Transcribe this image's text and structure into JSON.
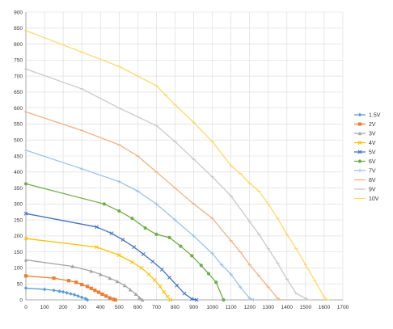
{
  "chart_data": {
    "type": "line",
    "title": "",
    "xlabel": "",
    "ylabel": "",
    "xlim": [
      0,
      1700
    ],
    "ylim": [
      0,
      900
    ],
    "x_ticks": [
      0,
      100,
      200,
      300,
      400,
      500,
      600,
      700,
      800,
      900,
      1000,
      1100,
      1200,
      1300,
      1400,
      1500,
      1600,
      1700
    ],
    "y_ticks": [
      0,
      50,
      100,
      150,
      200,
      250,
      300,
      350,
      400,
      450,
      500,
      550,
      600,
      650,
      700,
      750,
      800,
      850,
      900
    ],
    "grid": true,
    "legend_position": "right",
    "series": [
      {
        "name": "1.5V",
        "color": "#5b9bd5",
        "marker": "diamond",
        "x": [
          0,
          100,
          150,
          180,
          200,
          220,
          240,
          260,
          280,
          300,
          320,
          330
        ],
        "y": [
          37,
          33,
          30,
          27,
          25,
          22,
          19,
          16,
          12,
          8,
          4,
          0
        ]
      },
      {
        "name": "2V",
        "color": "#ed7d31",
        "marker": "square",
        "x": [
          0,
          150,
          230,
          270,
          300,
          330,
          350,
          370,
          390,
          410,
          430,
          450,
          470,
          480
        ],
        "y": [
          75,
          68,
          60,
          55,
          48,
          42,
          36,
          30,
          24,
          18,
          12,
          6,
          2,
          0
        ]
      },
      {
        "name": "3V",
        "color": "#a5a5a5",
        "marker": "triangle",
        "x": [
          0,
          250,
          350,
          400,
          450,
          490,
          530,
          560,
          590,
          610,
          625
        ],
        "y": [
          125,
          105,
          90,
          80,
          68,
          58,
          45,
          32,
          18,
          7,
          0
        ]
      },
      {
        "name": "4V",
        "color": "#ffc000",
        "marker": "x",
        "x": [
          0,
          380,
          500,
          570,
          620,
          660,
          690,
          720,
          740,
          760,
          775
        ],
        "y": [
          192,
          165,
          140,
          118,
          100,
          80,
          62,
          42,
          25,
          10,
          0
        ]
      },
      {
        "name": "5V",
        "color": "#4472c4",
        "marker": "x",
        "x": [
          0,
          380,
          460,
          520,
          580,
          630,
          680,
          730,
          770,
          810,
          850,
          890,
          915
        ],
        "y": [
          270,
          228,
          208,
          188,
          165,
          143,
          120,
          95,
          70,
          45,
          20,
          3,
          0
        ]
      },
      {
        "name": "6V",
        "color": "#70ad47",
        "marker": "circle",
        "x": [
          0,
          420,
          500,
          570,
          640,
          700,
          770,
          830,
          890,
          940,
          980,
          1020,
          1060
        ],
        "y": [
          363,
          300,
          278,
          255,
          225,
          205,
          195,
          168,
          138,
          108,
          82,
          55,
          0
        ]
      },
      {
        "name": "7V",
        "color": "#9dc3e6",
        "marker": "plus",
        "x": [
          0,
          300,
          500,
          600,
          700,
          800,
          900,
          1000,
          1050,
          1100,
          1150,
          1200,
          1220
        ],
        "y": [
          468,
          410,
          370,
          340,
          300,
          250,
          200,
          145,
          110,
          80,
          40,
          5,
          0
        ]
      },
      {
        "name": "8V",
        "color": "#f4b183",
        "marker": "dash",
        "x": [
          0,
          300,
          500,
          600,
          700,
          800,
          900,
          1000,
          1100,
          1150,
          1200,
          1250,
          1300,
          1350,
          1365
        ],
        "y": [
          588,
          530,
          485,
          450,
          400,
          350,
          300,
          255,
          185,
          150,
          110,
          75,
          40,
          5,
          0
        ]
      },
      {
        "name": "9V",
        "color": "#c9c9c9",
        "marker": "dash",
        "x": [
          0,
          300,
          500,
          700,
          800,
          900,
          1000,
          1100,
          1200,
          1250,
          1300,
          1350,
          1400,
          1450,
          1500,
          1515
        ],
        "y": [
          722,
          660,
          600,
          545,
          495,
          440,
          385,
          325,
          245,
          205,
          160,
          115,
          65,
          20,
          5,
          0
        ]
      },
      {
        "name": "10V",
        "color": "#ffd966",
        "marker": "dash",
        "x": [
          0,
          300,
          500,
          700,
          750,
          800,
          900,
          1000,
          1100,
          1150,
          1200,
          1250,
          1300,
          1350,
          1400,
          1450,
          1500,
          1550,
          1600,
          1620
        ],
        "y": [
          842,
          775,
          730,
          670,
          640,
          610,
          555,
          495,
          420,
          395,
          365,
          340,
          300,
          255,
          205,
          160,
          110,
          60,
          8,
          0
        ]
      }
    ]
  }
}
